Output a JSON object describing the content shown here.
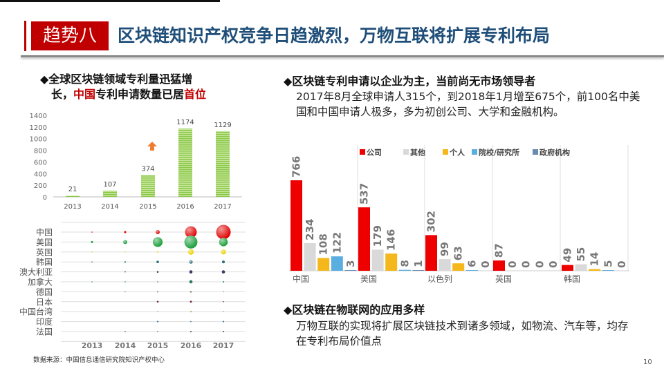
{
  "header": {
    "tag": "趋势八",
    "title": "区块链知识产权竞争日趋激烈，万物互联将扩展专利布局"
  },
  "left": {
    "heading_prefix": "◆全球区块链领域专利量迅猛增",
    "heading_line2_a": "长，",
    "heading_highlight1": "中国",
    "heading_line2_b": "专利申请数量已居",
    "heading_highlight2": "首位",
    "source": "数据来源：中国信息通信研究院知识产权中心"
  },
  "right": {
    "heading1": "◆区块链专利申请以企业为主，当前尚无市场领导者",
    "para1": "2017年8月全球申请人315个，到2018年1月增至675个，前100名中美国和中国申请人极多，多为初创公司、大学和金融机构。",
    "heading2": "◆区块链在物联网的应用多样",
    "para2": "万物互联的实现将扩展区块链技术到诸多领域，如物流、汽车等，均存在专利布局价值点"
  },
  "page_number": "10",
  "colors": {
    "accent": "#c00000",
    "title": "#1f4e79",
    "bar_green": "#92d050",
    "arrow": "#ed7d31"
  },
  "chart_data": [
    {
      "type": "bar",
      "categories": [
        "2013",
        "2014",
        "2015",
        "2016",
        "2017"
      ],
      "values": [
        21,
        107,
        374,
        1174,
        1129
      ],
      "yticks": [
        "0",
        "200",
        "400",
        "600",
        "800",
        "1000",
        "1200",
        "1400"
      ],
      "ylim": [
        0,
        1400
      ],
      "grid": false,
      "annotation": "up-arrow-icon above 2015"
    },
    {
      "type": "scatter",
      "subtype": "bubble",
      "x": [
        "2013",
        "2014",
        "2015",
        "2016",
        "2017"
      ],
      "categories": [
        "中国",
        "美国",
        "英国",
        "韩国",
        "澳大利亚",
        "加拿大",
        "德国",
        "日本",
        "中国台湾",
        "印度",
        "法国"
      ],
      "series": [
        {
          "values": [
            0.3,
            2,
            8,
            64,
            100
          ],
          "color": "#e00000"
        },
        {
          "values": [
            2,
            8,
            45,
            80,
            35
          ],
          "color": "#1a9e3a"
        },
        {
          "values": [
            0.1,
            0.3,
            1,
            15,
            12
          ],
          "color": "#e8d400"
        },
        {
          "values": [
            0.1,
            1,
            3,
            6,
            4
          ],
          "color": "#2f6f80"
        },
        {
          "values": [
            0,
            0.5,
            1.5,
            5,
            5
          ],
          "color": "#3c3c6e"
        },
        {
          "values": [
            0.3,
            0.3,
            0.5,
            5,
            1
          ],
          "color": "#2a7a6a"
        },
        {
          "values": [
            0,
            0.3,
            1,
            1.5,
            0.3
          ],
          "color": "#8a8a70"
        },
        {
          "values": [
            0,
            0,
            1.5,
            2,
            0.5
          ],
          "color": "#7a2a3a"
        },
        {
          "values": [
            0,
            0,
            0.3,
            1,
            0.3
          ],
          "color": "#a8a060"
        },
        {
          "values": [
            0,
            0,
            1,
            0.6,
            1
          ],
          "color": "#3a7090"
        },
        {
          "values": [
            0,
            0.3,
            0.5,
            1,
            1
          ],
          "color": "#444455"
        }
      ],
      "grid": true
    },
    {
      "type": "bar",
      "categories": [
        "中国",
        "美国",
        "以色列",
        "英国",
        "韩国"
      ],
      "series": [
        {
          "name": "公司",
          "values": [
            766,
            537,
            302,
            87,
            49
          ],
          "color": "#ee0000"
        },
        {
          "name": "其他",
          "values": [
            234,
            179,
            99,
            0,
            55
          ],
          "color": "#d9d9d9"
        },
        {
          "name": "个人",
          "values": [
            108,
            146,
            63,
            0,
            14
          ],
          "color": "#f4b81c"
        },
        {
          "name": "院校/研究所",
          "values": [
            122,
            8,
            6,
            0,
            5
          ],
          "color": "#5aaee0"
        },
        {
          "name": "政府机构",
          "values": [
            3,
            1,
            0,
            0,
            0
          ],
          "color": "#6a8ab0"
        }
      ],
      "legend": "top",
      "grid": "vertical separators"
    }
  ]
}
